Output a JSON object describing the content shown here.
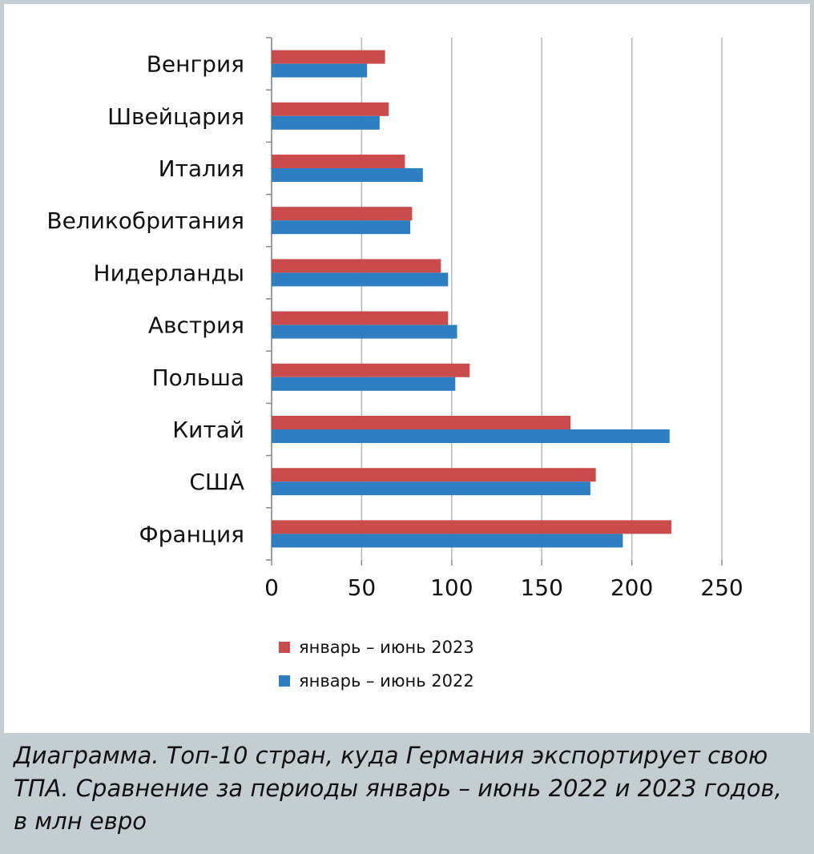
{
  "chart_data": {
    "type": "bar",
    "orientation": "horizontal",
    "categories": [
      "Венгрия",
      "Швейцария",
      "Италия",
      "Великобритания",
      "Нидерланды",
      "Австрия",
      "Польша",
      "Китай",
      "США",
      "Франция"
    ],
    "series": [
      {
        "name": "январь – июнь 2023",
        "color": "#c94b4b",
        "values": [
          63,
          65,
          74,
          78,
          94,
          98,
          110,
          166,
          180,
          222
        ]
      },
      {
        "name": "январь – июнь 2022",
        "color": "#2e7fc2",
        "values": [
          53,
          60,
          84,
          77,
          98,
          103,
          102,
          221,
          177,
          195
        ]
      }
    ],
    "xlim": [
      0,
      250
    ],
    "xticks": [
      "0",
      "50",
      "100",
      "150",
      "200",
      "250"
    ],
    "grid": true,
    "legend_position": "bottom"
  },
  "caption": "Диаграмма. Топ-10 стран, куда Германия экспортирует свою ТПА. Сравнение за периоды январь – июнь 2022 и 2023 годов, в млн евро"
}
